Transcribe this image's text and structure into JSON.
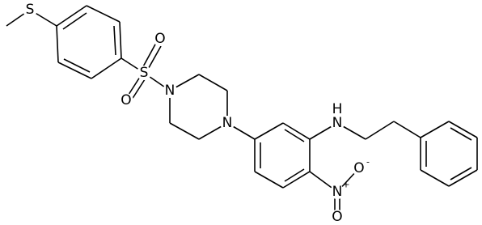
{
  "atoms": [
    {
      "label": "S"
    },
    {
      "label": "S"
    },
    {
      "label": "O"
    },
    {
      "label": "O"
    },
    {
      "label": "N"
    },
    {
      "label": "N"
    },
    {
      "label": "N"
    },
    {
      "label": "H"
    },
    {
      "label": "N"
    },
    {
      "label": "+"
    },
    {
      "label": "O"
    },
    {
      "label": "-"
    },
    {
      "label": "O"
    }
  ]
}
